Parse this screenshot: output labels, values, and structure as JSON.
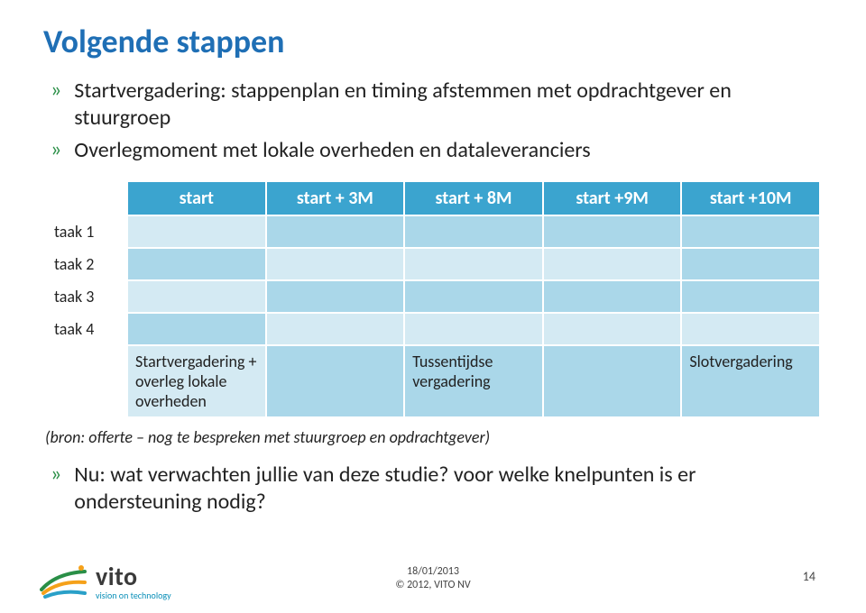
{
  "colors": {
    "title": "#1f6fb5",
    "bullet_mark": "#2a8f47",
    "header_bg": "#3ba4cf",
    "band_light": "#d4eaf3",
    "band_dark": "#aad7e9",
    "logo_tag": "#0a8fb8",
    "logo_swoosh1": "#2a8f47",
    "logo_swoosh2": "#f5a11a",
    "logo_swoosh3": "#2aa0c8"
  },
  "title": "Volgende stappen",
  "bullets": [
    "Startvergadering: stappenplan en timing afstemmen met opdrachtgever en stuurgroep",
    "Overlegmoment met lokale overheden en dataleveranciers"
  ],
  "table": {
    "headers": [
      "start",
      "start + 3M",
      "start + 8M",
      "start +9M",
      "start +10M"
    ],
    "row_labels": [
      "taak 1",
      "taak 2",
      "taak 3",
      "taak 4"
    ],
    "meeting_cells": {
      "start": "Startvergadering + overleg lokale overheden",
      "mid": "Tussentijdse vergadering",
      "end": "Slotvergadering"
    }
  },
  "source_note": "(bron: offerte – nog te bespreken met stuurgroep en opdrachtgever)",
  "closing_bullet": "Nu: wat verwachten jullie van deze studie? voor welke knelpunten is er ondersteuning nodig?",
  "logo": {
    "name": "vito",
    "tagline": "vision on technology"
  },
  "footer": {
    "date": "18/01/2013",
    "copyright": "© 2012, VITO NV",
    "page": "14"
  }
}
